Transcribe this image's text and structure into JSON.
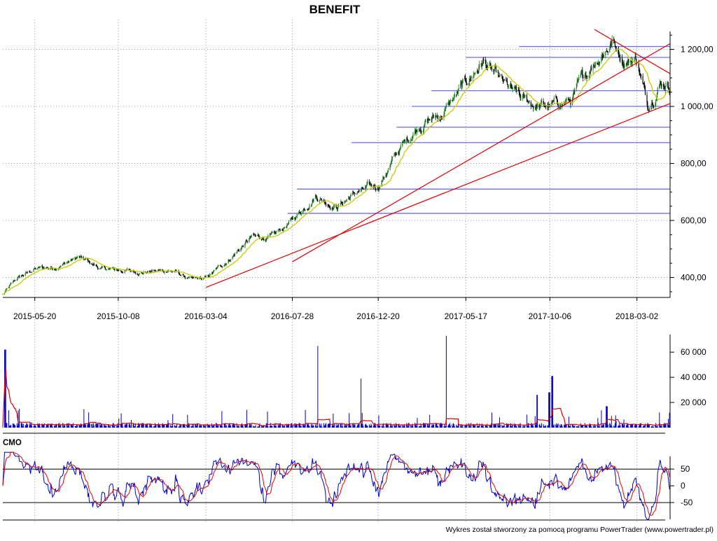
{
  "title": "BENEFIT",
  "footer": "Wykres został stworzony za pomocą programu PowerTrader (www.powertrader.pl)",
  "colors": {
    "candle_up": "#1f7a1f",
    "candle_down": "#000000",
    "moving_average": "#c8c800",
    "trendline": "#e00000",
    "level": "#6b6bff",
    "volume": "#0000cc",
    "volume_avg": "#e00000",
    "cmo": "#0000cc",
    "cmo_signal": "#e00000",
    "grid": "#9a9a9a",
    "axis": "#000000"
  },
  "chart_data": [
    {
      "id": "price",
      "type": "line",
      "title": "BENEFIT",
      "x_tick_labels": [
        "2015-05-20",
        "2015-10-08",
        "2016-03-04",
        "2016-07-28",
        "2016-12-20",
        "2017-05-17",
        "2017-10-06",
        "2018-03-02"
      ],
      "y_tick_labels": [
        "400,00",
        "600,00",
        "800,00",
        "1 000,00",
        "1 200,00"
      ],
      "y_ticks": [
        400,
        600,
        800,
        1000,
        1200
      ],
      "ylim": [
        330,
        1275
      ],
      "x_range": [
        "2015-03-27",
        "2018-04-27"
      ],
      "grid": true,
      "series_anchors": {
        "dates": [
          "2015-03-27",
          "2015-04-20",
          "2015-05-20",
          "2015-06-20",
          "2015-08-01",
          "2015-09-10",
          "2015-10-08",
          "2015-11-20",
          "2016-01-05",
          "2016-02-10",
          "2016-03-04",
          "2016-04-10",
          "2016-05-20",
          "2016-06-25",
          "2016-07-28",
          "2016-09-05",
          "2016-10-10",
          "2016-11-15",
          "2016-12-20",
          "2017-01-25",
          "2017-03-01",
          "2017-04-05",
          "2017-05-17",
          "2017-06-15",
          "2017-07-15",
          "2017-08-20",
          "2017-09-20",
          "2017-10-06",
          "2017-11-10",
          "2017-12-20",
          "2018-01-20",
          "2018-02-10",
          "2018-03-02",
          "2018-03-20",
          "2018-04-10",
          "2018-04-27"
        ],
        "close": [
          340,
          395,
          430,
          435,
          470,
          430,
          425,
          420,
          425,
          390,
          395,
          460,
          540,
          540,
          600,
          690,
          650,
          700,
          720,
          850,
          940,
          970,
          1080,
          1160,
          1080,
          1020,
          1000,
          1000,
          1020,
          1160,
          1230,
          1160,
          1170,
          1000,
          1090,
          1080
        ]
      },
      "moving_average_label": "",
      "horizontal_levels": [
        625,
        710,
        873,
        927,
        1000,
        1055,
        1172,
        1210
      ],
      "trendlines": [
        {
          "from": {
            "date": "2016-03-04",
            "value": 365
          },
          "to": {
            "date": "2018-04-27",
            "value": 1010
          }
        },
        {
          "from": {
            "date": "2016-07-28",
            "value": 455
          },
          "to": {
            "date": "2018-04-27",
            "value": 1220
          }
        },
        {
          "from": {
            "date": "2017-12-20",
            "value": 1270
          },
          "to": {
            "date": "2018-04-27",
            "value": 1115
          }
        }
      ]
    },
    {
      "id": "volume",
      "type": "bar",
      "y_tick_labels": [
        "20 000",
        "40 000",
        "60 000"
      ],
      "y_ticks": [
        20000,
        40000,
        60000
      ],
      "ylim": [
        0,
        74000
      ],
      "typical_value": 2500,
      "spikes": [
        {
          "date": "2015-03-31",
          "value": 62000
        },
        {
          "date": "2015-04-25",
          "value": 15000
        },
        {
          "date": "2016-09-10",
          "value": 65000
        },
        {
          "date": "2016-11-20",
          "value": 39000
        },
        {
          "date": "2017-04-15",
          "value": 73000
        },
        {
          "date": "2017-09-15",
          "value": 26000
        },
        {
          "date": "2017-10-10",
          "value": 41000
        },
        {
          "date": "2017-10-05",
          "value": 28000
        },
        {
          "date": "2018-01-10",
          "value": 17000
        },
        {
          "date": "2016-08-20",
          "value": 14000
        },
        {
          "date": "2017-07-01",
          "value": 12000
        }
      ]
    },
    {
      "id": "cmo",
      "type": "line",
      "title": "CMO",
      "y_tick_labels": [
        "50",
        "0",
        "-50"
      ],
      "y_ticks": [
        50,
        0,
        -50
      ],
      "ylim": [
        -100,
        88
      ],
      "reference_lines": [
        50,
        -50
      ]
    }
  ]
}
